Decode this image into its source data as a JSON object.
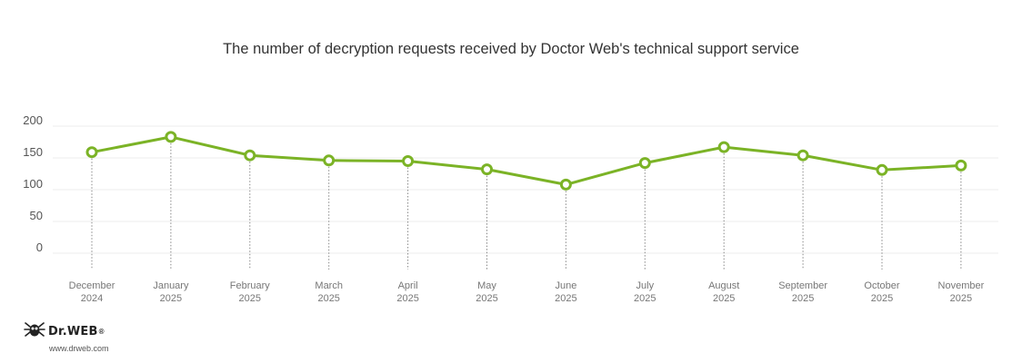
{
  "colors": {
    "series": "#7bb326",
    "grid": "#eeeeee"
  },
  "chart_data": {
    "type": "line",
    "title": "The number of decryption requests received by Doctor Web's technical support service",
    "xlabel": "",
    "ylabel": "",
    "ylim": [
      0,
      200
    ],
    "yticks": [
      "200",
      "150",
      "100",
      "50",
      "0"
    ],
    "categories": [
      [
        "December",
        "2024"
      ],
      [
        "January",
        "2025"
      ],
      [
        "February",
        "2025"
      ],
      [
        "March",
        "2025"
      ],
      [
        "April",
        "2025"
      ],
      [
        "May",
        "2025"
      ],
      [
        "June",
        "2025"
      ],
      [
        "July",
        "2025"
      ],
      [
        "August",
        "2025"
      ],
      [
        "September",
        "2025"
      ],
      [
        "October",
        "2025"
      ],
      [
        "November",
        "2025"
      ]
    ],
    "series": [
      {
        "values": [
          159,
          183,
          154,
          146,
          145,
          132,
          108,
          142,
          167,
          154,
          131,
          138
        ]
      }
    ],
    "grid": true,
    "legend": "none"
  },
  "brand": {
    "icon": "dr-web-spider-icon",
    "name": "Dr.WEB",
    "registered_mark": "®",
    "url": "www.drweb.com"
  }
}
